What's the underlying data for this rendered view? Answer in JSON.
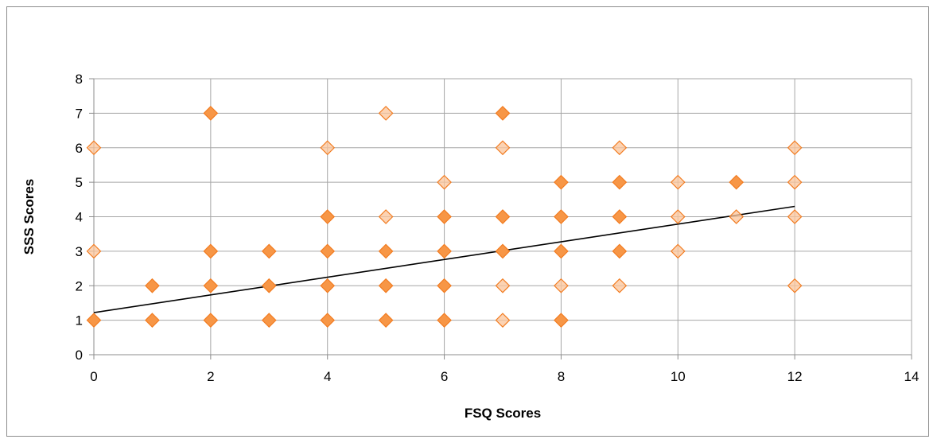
{
  "chart_data": {
    "type": "scatter",
    "title": "",
    "xlabel": "FSQ Scores",
    "ylabel": "SSS Scores",
    "xlim": [
      0,
      14
    ],
    "ylim": [
      0,
      8
    ],
    "x_ticks": [
      "0",
      "2",
      "4",
      "6",
      "8",
      "10",
      "12",
      "14"
    ],
    "y_ticks": [
      "0",
      "1",
      "2",
      "3",
      "4",
      "5",
      "6",
      "7",
      "8"
    ],
    "grid": true,
    "legend": "none",
    "colors": {
      "marker_fill": "#f79646",
      "marker_dark": "#f27b1f",
      "marker_light": "#fbc49a",
      "trendline": "#000000"
    },
    "series": [
      {
        "points": [
          {
            "x": 0,
            "y": 1,
            "dup": true
          },
          {
            "x": 0,
            "y": 3,
            "dup": false
          },
          {
            "x": 0,
            "y": 6,
            "dup": false
          },
          {
            "x": 1,
            "y": 1,
            "dup": true
          },
          {
            "x": 1,
            "y": 2,
            "dup": true
          },
          {
            "x": 2,
            "y": 1,
            "dup": true
          },
          {
            "x": 2,
            "y": 2,
            "dup": true
          },
          {
            "x": 2,
            "y": 3,
            "dup": true
          },
          {
            "x": 2,
            "y": 7,
            "dup": true
          },
          {
            "x": 3,
            "y": 1,
            "dup": true
          },
          {
            "x": 3,
            "y": 2,
            "dup": true
          },
          {
            "x": 3,
            "y": 3,
            "dup": true
          },
          {
            "x": 4,
            "y": 1,
            "dup": true
          },
          {
            "x": 4,
            "y": 2,
            "dup": true
          },
          {
            "x": 4,
            "y": 3,
            "dup": true
          },
          {
            "x": 4,
            "y": 4,
            "dup": true
          },
          {
            "x": 4,
            "y": 6,
            "dup": false
          },
          {
            "x": 5,
            "y": 1,
            "dup": true
          },
          {
            "x": 5,
            "y": 2,
            "dup": true
          },
          {
            "x": 5,
            "y": 3,
            "dup": true
          },
          {
            "x": 5,
            "y": 4,
            "dup": false
          },
          {
            "x": 5,
            "y": 7,
            "dup": false
          },
          {
            "x": 6,
            "y": 1,
            "dup": true
          },
          {
            "x": 6,
            "y": 2,
            "dup": true
          },
          {
            "x": 6,
            "y": 3,
            "dup": true
          },
          {
            "x": 6,
            "y": 4,
            "dup": true
          },
          {
            "x": 6,
            "y": 5,
            "dup": false
          },
          {
            "x": 7,
            "y": 1,
            "dup": false
          },
          {
            "x": 7,
            "y": 2,
            "dup": false
          },
          {
            "x": 7,
            "y": 3,
            "dup": true
          },
          {
            "x": 7,
            "y": 4,
            "dup": true
          },
          {
            "x": 7,
            "y": 6,
            "dup": false
          },
          {
            "x": 7,
            "y": 7,
            "dup": true
          },
          {
            "x": 8,
            "y": 1,
            "dup": true
          },
          {
            "x": 8,
            "y": 2,
            "dup": false
          },
          {
            "x": 8,
            "y": 3,
            "dup": true
          },
          {
            "x": 8,
            "y": 4,
            "dup": true
          },
          {
            "x": 8,
            "y": 5,
            "dup": true
          },
          {
            "x": 9,
            "y": 2,
            "dup": false
          },
          {
            "x": 9,
            "y": 3,
            "dup": true
          },
          {
            "x": 9,
            "y": 4,
            "dup": true
          },
          {
            "x": 9,
            "y": 5,
            "dup": true
          },
          {
            "x": 9,
            "y": 6,
            "dup": false
          },
          {
            "x": 10,
            "y": 3,
            "dup": false
          },
          {
            "x": 10,
            "y": 4,
            "dup": false
          },
          {
            "x": 10,
            "y": 5,
            "dup": false
          },
          {
            "x": 11,
            "y": 4,
            "dup": false
          },
          {
            "x": 11,
            "y": 5,
            "dup": true
          },
          {
            "x": 12,
            "y": 2,
            "dup": false
          },
          {
            "x": 12,
            "y": 4,
            "dup": false
          },
          {
            "x": 12,
            "y": 5,
            "dup": false
          },
          {
            "x": 12,
            "y": 6,
            "dup": false
          }
        ]
      }
    ],
    "trendline": {
      "type": "linear",
      "x": [
        0,
        12
      ],
      "y": [
        1.22,
        4.3
      ]
    }
  }
}
